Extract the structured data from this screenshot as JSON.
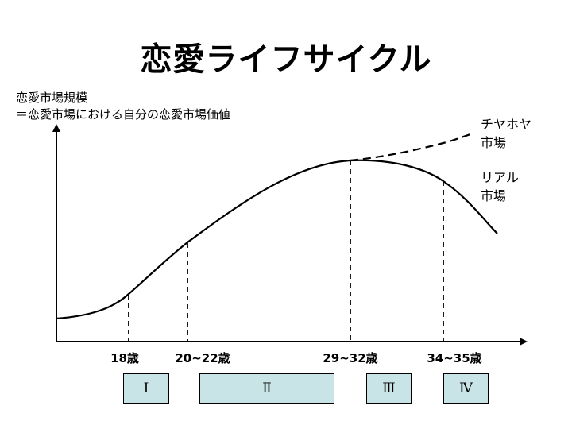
{
  "title": "恋愛ライフサイクル",
  "y_axis_label": {
    "line1": "恋愛市場規模",
    "line2": "＝恋愛市場における自分の恋愛市場価値"
  },
  "curves": {
    "chayahoya": {
      "line1": "チヤホヤ",
      "line2": "市場",
      "style": "dashed"
    },
    "real": {
      "line1": "リアル",
      "line2": "市場",
      "style": "solid"
    }
  },
  "age_markers": [
    {
      "label": "18歳"
    },
    {
      "label": "20~22歳"
    },
    {
      "label": "29~32歳"
    },
    {
      "label": "34~35歳"
    }
  ],
  "phases": [
    {
      "label": "Ⅰ"
    },
    {
      "label": "Ⅱ"
    },
    {
      "label": "Ⅲ"
    },
    {
      "label": "Ⅳ"
    }
  ],
  "colors": {
    "phase_fill": "#c9e4e7",
    "line": "#000000"
  }
}
